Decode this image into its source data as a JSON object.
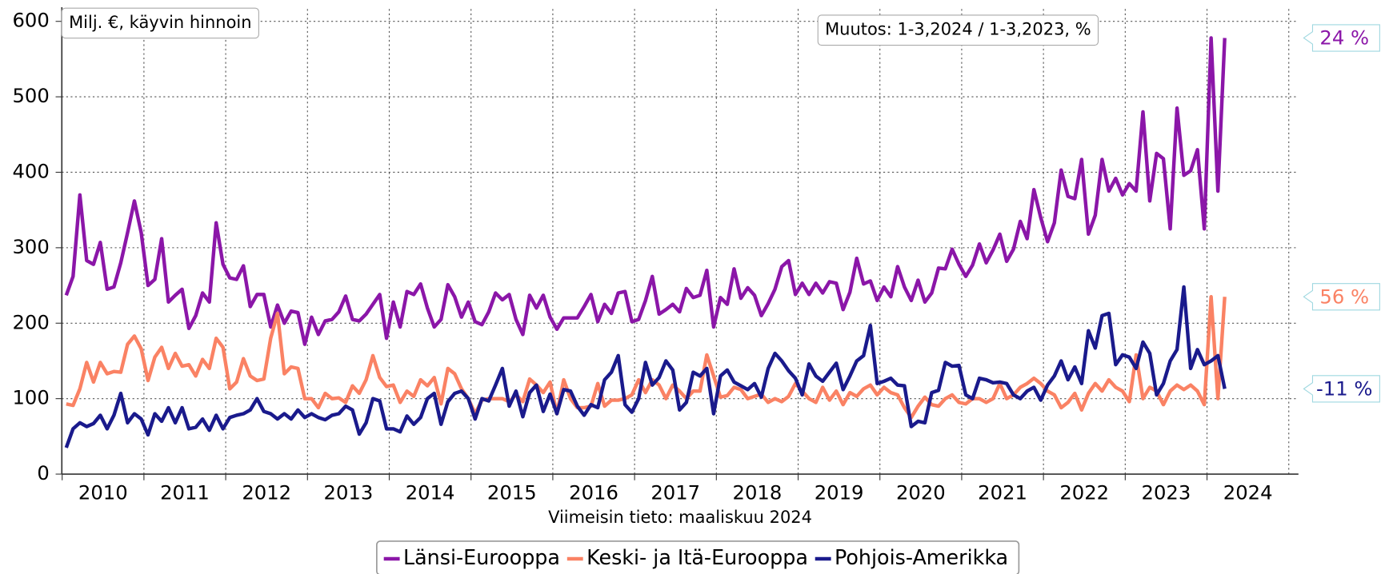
{
  "chart_data": {
    "type": "line",
    "annotations_top": [
      "Milj. €, käyvin hinnoin",
      "Muutos: 1-3,2024 / 1-3,2023, %"
    ],
    "xlabel": "Viimeisin tieto: maaliskuu 2024",
    "categories": [
      "2010",
      null,
      null,
      null,
      null,
      null,
      null,
      null,
      null,
      null,
      null,
      null,
      "2011",
      null,
      null,
      null,
      null,
      null,
      null,
      null,
      null,
      null,
      null,
      null,
      "2012",
      null,
      null,
      null,
      null,
      null,
      null,
      null,
      null,
      null,
      null,
      null,
      "2013",
      null,
      null,
      null,
      null,
      null,
      null,
      null,
      null,
      null,
      null,
      null,
      "2014",
      null,
      null,
      null,
      null,
      null,
      null,
      null,
      null,
      null,
      null,
      null,
      "2015",
      null,
      null,
      null,
      null,
      null,
      null,
      null,
      null,
      null,
      null,
      null,
      "2016",
      null,
      null,
      null,
      null,
      null,
      null,
      null,
      null,
      null,
      null,
      null,
      "2017",
      null,
      null,
      null,
      null,
      null,
      null,
      null,
      null,
      null,
      null,
      null,
      "2018",
      null,
      null,
      null,
      null,
      null,
      null,
      null,
      null,
      null,
      null,
      null,
      "2019",
      null,
      null,
      null,
      null,
      null,
      null,
      null,
      null,
      null,
      null,
      null,
      "2020",
      null,
      null,
      null,
      null,
      null,
      null,
      null,
      null,
      null,
      null,
      null,
      "2021",
      null,
      null,
      null,
      null,
      null,
      null,
      null,
      null,
      null,
      null,
      null,
      "2022",
      null,
      null,
      null,
      null,
      null,
      null,
      null,
      null,
      null,
      null,
      null,
      "2023",
      null,
      null,
      null,
      null,
      null,
      null,
      null,
      null,
      null,
      null,
      null,
      "2024",
      null,
      null
    ],
    "series": [
      {
        "name": "Länsi-Eurooppa",
        "color": "#8b16a8",
        "change_label": "24 %",
        "values": [
          237,
          262,
          370,
          283,
          278,
          307,
          245,
          248,
          280,
          320,
          362,
          320,
          250,
          258,
          312,
          228,
          237,
          245,
          193,
          210,
          240,
          228,
          333,
          278,
          260,
          258,
          276,
          222,
          238,
          238,
          195,
          224,
          200,
          216,
          214,
          172,
          208,
          185,
          203,
          205,
          215,
          236,
          205,
          203,
          212,
          225,
          238,
          180,
          228,
          195,
          242,
          238,
          252,
          220,
          195,
          205,
          251,
          235,
          208,
          228,
          202,
          198,
          215,
          240,
          231,
          238,
          205,
          185,
          237,
          220,
          237,
          208,
          192,
          207,
          207,
          207,
          222,
          238,
          202,
          225,
          213,
          240,
          242,
          202,
          205,
          230,
          262,
          212,
          218,
          225,
          215,
          246,
          234,
          237,
          270,
          195,
          234,
          225,
          272,
          233,
          247,
          237,
          210,
          226,
          245,
          275,
          283,
          238,
          253,
          238,
          253,
          240,
          255,
          253,
          218,
          241,
          286,
          252,
          256,
          230,
          248,
          235,
          275,
          248,
          230,
          257,
          228,
          240,
          273,
          272,
          298,
          278,
          262,
          277,
          305,
          280,
          297,
          318,
          282,
          298,
          335,
          312,
          377,
          340,
          308,
          333,
          403,
          368,
          365,
          417,
          318,
          343,
          417,
          375,
          392,
          370,
          385,
          375,
          480,
          362,
          425,
          418,
          325,
          485,
          396,
          402,
          430,
          325,
          578,
          375,
          578
        ]
      },
      {
        "name": "Keski- ja Itä-Eurooppa",
        "color": "#fa8264",
        "change_label": "56 %",
        "values": [
          93,
          91,
          113,
          148,
          122,
          148,
          133,
          136,
          135,
          172,
          183,
          166,
          124,
          155,
          168,
          140,
          160,
          143,
          145,
          130,
          152,
          140,
          180,
          168,
          113,
          122,
          153,
          130,
          124,
          126,
          180,
          213,
          133,
          142,
          140,
          100,
          100,
          88,
          107,
          100,
          101,
          95,
          117,
          107,
          125,
          157,
          128,
          116,
          118,
          95,
          110,
          103,
          125,
          117,
          128,
          93,
          140,
          133,
          113,
          100,
          80,
          98,
          100,
          100,
          100,
          96,
          105,
          96,
          126,
          118,
          108,
          122,
          80,
          125,
          100,
          88,
          88,
          90,
          120,
          90,
          98,
          98,
          100,
          105,
          125,
          108,
          125,
          118,
          100,
          118,
          110,
          100,
          110,
          110,
          158,
          130,
          102,
          104,
          115,
          112,
          100,
          103,
          106,
          95,
          100,
          96,
          103,
          120,
          110,
          100,
          95,
          115,
          98,
          110,
          92,
          108,
          103,
          113,
          118,
          105,
          115,
          108,
          105,
          88,
          75,
          90,
          102,
          92,
          90,
          100,
          105,
          95,
          93,
          100,
          100,
          95,
          100,
          120,
          100,
          105,
          115,
          120,
          127,
          120,
          110,
          105,
          88,
          95,
          107,
          85,
          107,
          120,
          110,
          125,
          115,
          110,
          96,
          158,
          100,
          115,
          110,
          92,
          110,
          118,
          112,
          118,
          110,
          92,
          235,
          100,
          235
        ]
      },
      {
        "name": "Pohjois-Amerikka",
        "color": "#1a1a8c",
        "change_label": "-11 %",
        "values": [
          35,
          60,
          68,
          63,
          67,
          78,
          60,
          78,
          107,
          68,
          80,
          73,
          52,
          80,
          70,
          88,
          68,
          88,
          60,
          62,
          73,
          58,
          78,
          60,
          75,
          78,
          80,
          85,
          100,
          83,
          80,
          73,
          80,
          73,
          85,
          75,
          80,
          75,
          72,
          78,
          80,
          90,
          85,
          53,
          68,
          100,
          97,
          60,
          60,
          56,
          77,
          66,
          75,
          100,
          107,
          66,
          96,
          107,
          110,
          100,
          73,
          100,
          97,
          118,
          140,
          90,
          110,
          76,
          108,
          118,
          83,
          106,
          80,
          112,
          110,
          90,
          78,
          92,
          88,
          125,
          135,
          157,
          92,
          82,
          100,
          148,
          118,
          128,
          150,
          138,
          85,
          95,
          135,
          130,
          140,
          80,
          130,
          138,
          122,
          117,
          112,
          120,
          102,
          140,
          160,
          150,
          137,
          127,
          105,
          146,
          130,
          123,
          135,
          147,
          112,
          130,
          150,
          157,
          197,
          120,
          123,
          127,
          118,
          117,
          63,
          70,
          68,
          108,
          111,
          148,
          143,
          144,
          105,
          100,
          127,
          125,
          121,
          122,
          120,
          105,
          100,
          110,
          115,
          98,
          118,
          130,
          150,
          125,
          142,
          120,
          190,
          167,
          210,
          213,
          145,
          158,
          155,
          140,
          175,
          160,
          105,
          120,
          150,
          165,
          248,
          140,
          165,
          145,
          150,
          157,
          113
        ]
      }
    ],
    "ylim": [
      0,
      600
    ],
    "yticks": [
      0,
      100,
      200,
      300,
      400,
      500,
      600
    ],
    "grid": true
  }
}
